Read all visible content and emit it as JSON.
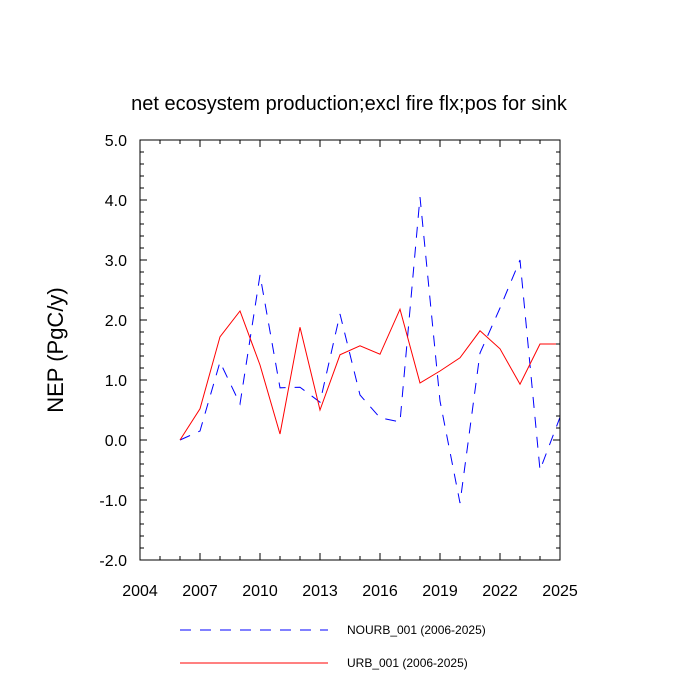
{
  "chart_data": {
    "type": "line",
    "title": "net ecosystem production;excl fire flx;pos for sink",
    "xlabel": "",
    "ylabel": "NEP  (PgC/y)",
    "xlim": [
      2004,
      2025
    ],
    "ylim": [
      -2.0,
      5.0
    ],
    "x_ticks": [
      2004,
      2007,
      2010,
      2013,
      2016,
      2019,
      2022,
      2025
    ],
    "x_tick_labels": [
      "2004",
      "2007",
      "2010",
      "2013",
      "2016",
      "2019",
      "2022",
      "2025"
    ],
    "y_ticks": [
      -2.0,
      -1.0,
      0.0,
      1.0,
      2.0,
      3.0,
      4.0,
      5.0
    ],
    "y_tick_labels": [
      "-2.0",
      "-1.0",
      "0.0",
      "1.0",
      "2.0",
      "3.0",
      "4.0",
      "5.0"
    ],
    "grid": false,
    "legend_position": "bottom",
    "x": [
      2006,
      2007,
      2008,
      2009,
      2010,
      2011,
      2012,
      2013,
      2014,
      2015,
      2016,
      2017,
      2018,
      2019,
      2020,
      2021,
      2022,
      2023,
      2024,
      2025
    ],
    "series": [
      {
        "name": "NOURB_001 (2006-2025)",
        "color": "#0000ff",
        "style": "dashed",
        "values": [
          0.0,
          0.15,
          1.3,
          0.6,
          2.75,
          0.87,
          0.88,
          0.63,
          2.1,
          0.75,
          0.37,
          0.3,
          4.05,
          0.65,
          -1.05,
          1.45,
          2.2,
          3.0,
          -0.5,
          0.38
        ]
      },
      {
        "name": "URB_001 (2006-2025)",
        "color": "#ff0000",
        "style": "solid",
        "values": [
          0.0,
          0.52,
          1.72,
          2.15,
          1.25,
          0.1,
          1.88,
          0.5,
          1.42,
          1.57,
          1.43,
          2.18,
          0.95,
          1.15,
          1.37,
          1.82,
          1.52,
          0.93,
          1.6,
          1.6
        ]
      }
    ]
  }
}
